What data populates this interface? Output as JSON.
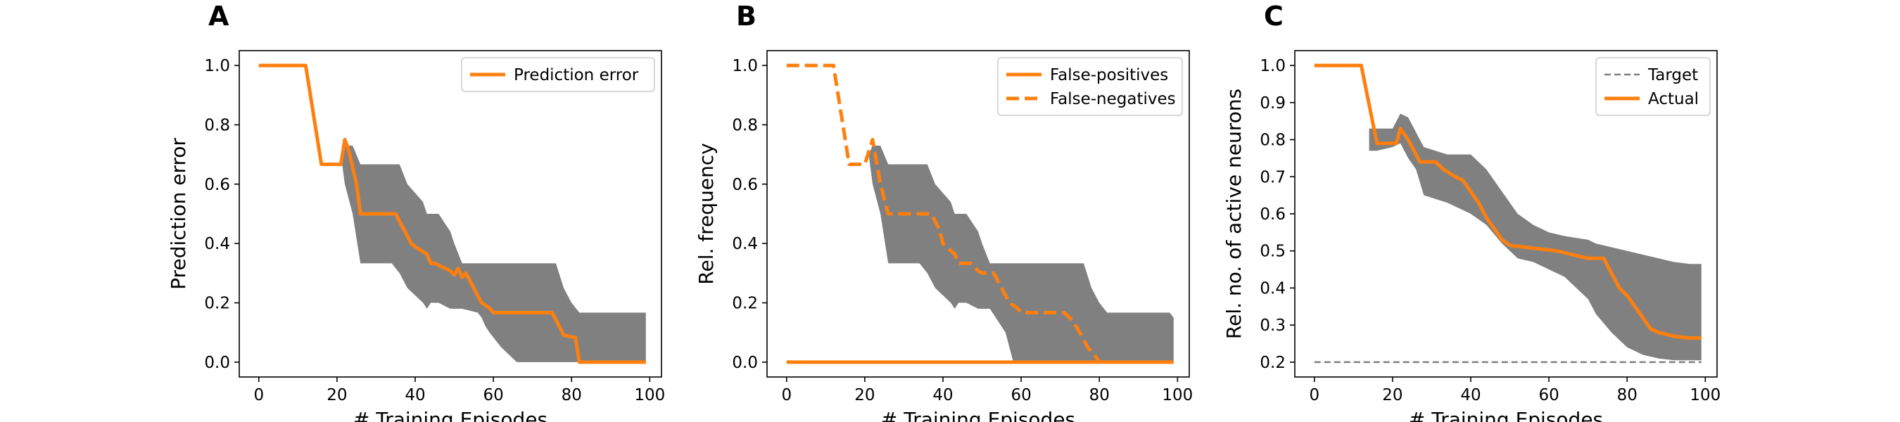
{
  "chart_data": [
    {
      "type": "line",
      "panel": "A",
      "xlabel": "# Training Episodes",
      "ylabel": "Prediction error",
      "xlim": [
        -5,
        103
      ],
      "ylim": [
        -0.05,
        1.05
      ],
      "xticks": [
        "0",
        "20",
        "40",
        "60",
        "80",
        "100"
      ],
      "yticks": [
        "0.0",
        "0.2",
        "0.4",
        "0.6",
        "0.8",
        "1.0"
      ],
      "legend_position": "top-right",
      "series": [
        {
          "name": "Prediction error",
          "color": "#ff7f0e",
          "style": "solid",
          "x": [
            0,
            12,
            16,
            21,
            22,
            23,
            25,
            26,
            27,
            35,
            37,
            39,
            40,
            43,
            44,
            45,
            49,
            50,
            51,
            52,
            53,
            55,
            57,
            59,
            60,
            75,
            76,
            78,
            81,
            82,
            99
          ],
          "y": [
            1.0,
            1.0,
            0.667,
            0.667,
            0.75,
            0.714,
            0.6,
            0.5,
            0.5,
            0.5,
            0.45,
            0.4,
            0.389,
            0.364,
            0.333,
            0.333,
            0.308,
            0.294,
            0.316,
            0.286,
            0.3,
            0.25,
            0.2,
            0.182,
            0.167,
            0.167,
            0.143,
            0.091,
            0.083,
            0.0,
            0.0
          ]
        }
      ],
      "band": {
        "x": [
          21,
          22,
          24,
          26,
          27,
          29,
          34,
          36,
          38,
          42,
          43,
          44,
          46,
          49,
          50,
          52,
          56,
          57,
          58,
          59,
          62,
          66,
          69,
          70,
          71,
          73,
          75,
          76,
          78,
          80,
          82,
          85,
          99
        ],
        "upper": [
          0.7,
          0.73,
          0.73,
          0.667,
          0.667,
          0.667,
          0.667,
          0.667,
          0.6,
          0.54,
          0.5,
          0.5,
          0.5,
          0.44,
          0.4,
          0.333,
          0.333,
          0.333,
          0.333,
          0.333,
          0.333,
          0.333,
          0.333,
          0.333,
          0.333,
          0.333,
          0.333,
          0.333,
          0.25,
          0.2,
          0.167,
          0.167,
          0.167
        ],
        "lower": [
          0.7,
          0.6,
          0.5,
          0.333,
          0.333,
          0.333,
          0.333,
          0.3,
          0.25,
          0.2,
          0.18,
          0.2,
          0.2,
          0.18,
          0.18,
          0.18,
          0.167,
          0.15,
          0.12,
          0.1,
          0.05,
          0.0,
          0.0,
          0.0,
          0.0,
          0.0,
          0.0,
          0.0,
          0.0,
          0.0,
          0.0,
          0.0,
          0.0
        ]
      }
    },
    {
      "type": "line",
      "panel": "B",
      "xlabel": "# Training Episodes",
      "ylabel": "Rel. frequency",
      "xlim": [
        -5,
        103
      ],
      "ylim": [
        -0.05,
        1.05
      ],
      "xticks": [
        "0",
        "20",
        "40",
        "60",
        "80",
        "100"
      ],
      "yticks": [
        "0.0",
        "0.2",
        "0.4",
        "0.6",
        "0.8",
        "1.0"
      ],
      "legend_position": "top-right",
      "series": [
        {
          "name": "False-positives",
          "color": "#ff7f0e",
          "style": "solid",
          "x": [
            0,
            99
          ],
          "y": [
            0.0,
            0.0
          ]
        },
        {
          "name": "False-negatives",
          "color": "#ff7f0e",
          "style": "dashed",
          "x": [
            0,
            12,
            16,
            20,
            22,
            24,
            25,
            26,
            37,
            39,
            40,
            43,
            44,
            47,
            49,
            50,
            53,
            55,
            57,
            59,
            60,
            71,
            73,
            75,
            77,
            79,
            80
          ],
          "y": [
            1.0,
            1.0,
            0.667,
            0.667,
            0.75,
            0.6,
            0.55,
            0.5,
            0.5,
            0.45,
            0.4,
            0.364,
            0.333,
            0.333,
            0.308,
            0.3,
            0.3,
            0.25,
            0.2,
            0.182,
            0.167,
            0.167,
            0.143,
            0.1,
            0.05,
            0.02,
            0.0
          ]
        }
      ],
      "band": {
        "x": [
          21,
          22,
          24,
          26,
          27,
          29,
          34,
          36,
          38,
          42,
          43,
          44,
          46,
          49,
          50,
          52,
          56,
          57,
          58,
          59,
          62,
          66,
          69,
          70,
          71,
          73,
          75,
          76,
          78,
          80,
          82,
          85,
          98,
          99
        ],
        "upper": [
          0.7,
          0.73,
          0.73,
          0.667,
          0.667,
          0.667,
          0.667,
          0.667,
          0.6,
          0.54,
          0.5,
          0.5,
          0.5,
          0.44,
          0.4,
          0.333,
          0.333,
          0.333,
          0.333,
          0.333,
          0.333,
          0.333,
          0.333,
          0.333,
          0.333,
          0.333,
          0.333,
          0.333,
          0.25,
          0.2,
          0.167,
          0.167,
          0.167,
          0.15
        ],
        "lower": [
          0.7,
          0.6,
          0.5,
          0.333,
          0.333,
          0.333,
          0.333,
          0.3,
          0.25,
          0.2,
          0.18,
          0.2,
          0.2,
          0.18,
          0.18,
          0.18,
          0.1,
          0.05,
          0.0,
          0.0,
          0.0,
          0.0,
          0.0,
          0.0,
          0.0,
          0.0,
          0.0,
          0.0,
          0.0,
          0.0,
          0.0,
          0.0,
          0.0,
          0.0
        ]
      }
    },
    {
      "type": "line",
      "panel": "C",
      "xlabel": "# Training Episodes",
      "ylabel": "Rel. no. of active neurons",
      "xlim": [
        -5,
        103
      ],
      "ylim": [
        0.16,
        1.04
      ],
      "xticks": [
        "0",
        "20",
        "40",
        "60",
        "80",
        "100"
      ],
      "yticks": [
        "0.2",
        "0.3",
        "0.4",
        "0.5",
        "0.6",
        "0.7",
        "0.8",
        "0.9",
        "1.0"
      ],
      "legend_position": "top-right",
      "series": [
        {
          "name": "Target",
          "color": "#808080",
          "style": "dashed",
          "x": [
            0,
            99
          ],
          "y": [
            0.2,
            0.2
          ]
        },
        {
          "name": "Actual",
          "color": "#ff7f0e",
          "style": "solid",
          "x": [
            0,
            12,
            16,
            21,
            22,
            24,
            26,
            27,
            31,
            33,
            36,
            38,
            40,
            42,
            44,
            46,
            48,
            50,
            54,
            58,
            62,
            66,
            70,
            74,
            76,
            78,
            80,
            82,
            84,
            86,
            88,
            92,
            96,
            99
          ],
          "y": [
            1.0,
            1.0,
            0.79,
            0.79,
            0.83,
            0.8,
            0.76,
            0.74,
            0.74,
            0.72,
            0.7,
            0.69,
            0.66,
            0.63,
            0.59,
            0.56,
            0.53,
            0.515,
            0.51,
            0.505,
            0.5,
            0.49,
            0.48,
            0.48,
            0.44,
            0.4,
            0.38,
            0.35,
            0.32,
            0.29,
            0.28,
            0.27,
            0.265,
            0.265
          ]
        }
      ],
      "band": {
        "x": [
          14,
          16,
          20,
          22,
          24,
          26,
          28,
          34,
          38,
          40,
          44,
          48,
          52,
          56,
          60,
          64,
          70,
          72,
          76,
          80,
          84,
          88,
          92,
          96,
          99
        ],
        "upper": [
          0.83,
          0.83,
          0.83,
          0.87,
          0.86,
          0.82,
          0.78,
          0.76,
          0.76,
          0.76,
          0.72,
          0.66,
          0.6,
          0.57,
          0.55,
          0.54,
          0.53,
          0.52,
          0.51,
          0.5,
          0.49,
          0.48,
          0.47,
          0.465,
          0.465
        ],
        "lower": [
          0.77,
          0.77,
          0.78,
          0.79,
          0.75,
          0.72,
          0.65,
          0.63,
          0.61,
          0.6,
          0.57,
          0.52,
          0.48,
          0.47,
          0.45,
          0.43,
          0.37,
          0.33,
          0.28,
          0.24,
          0.22,
          0.21,
          0.205,
          0.205,
          0.205
        ]
      }
    }
  ]
}
